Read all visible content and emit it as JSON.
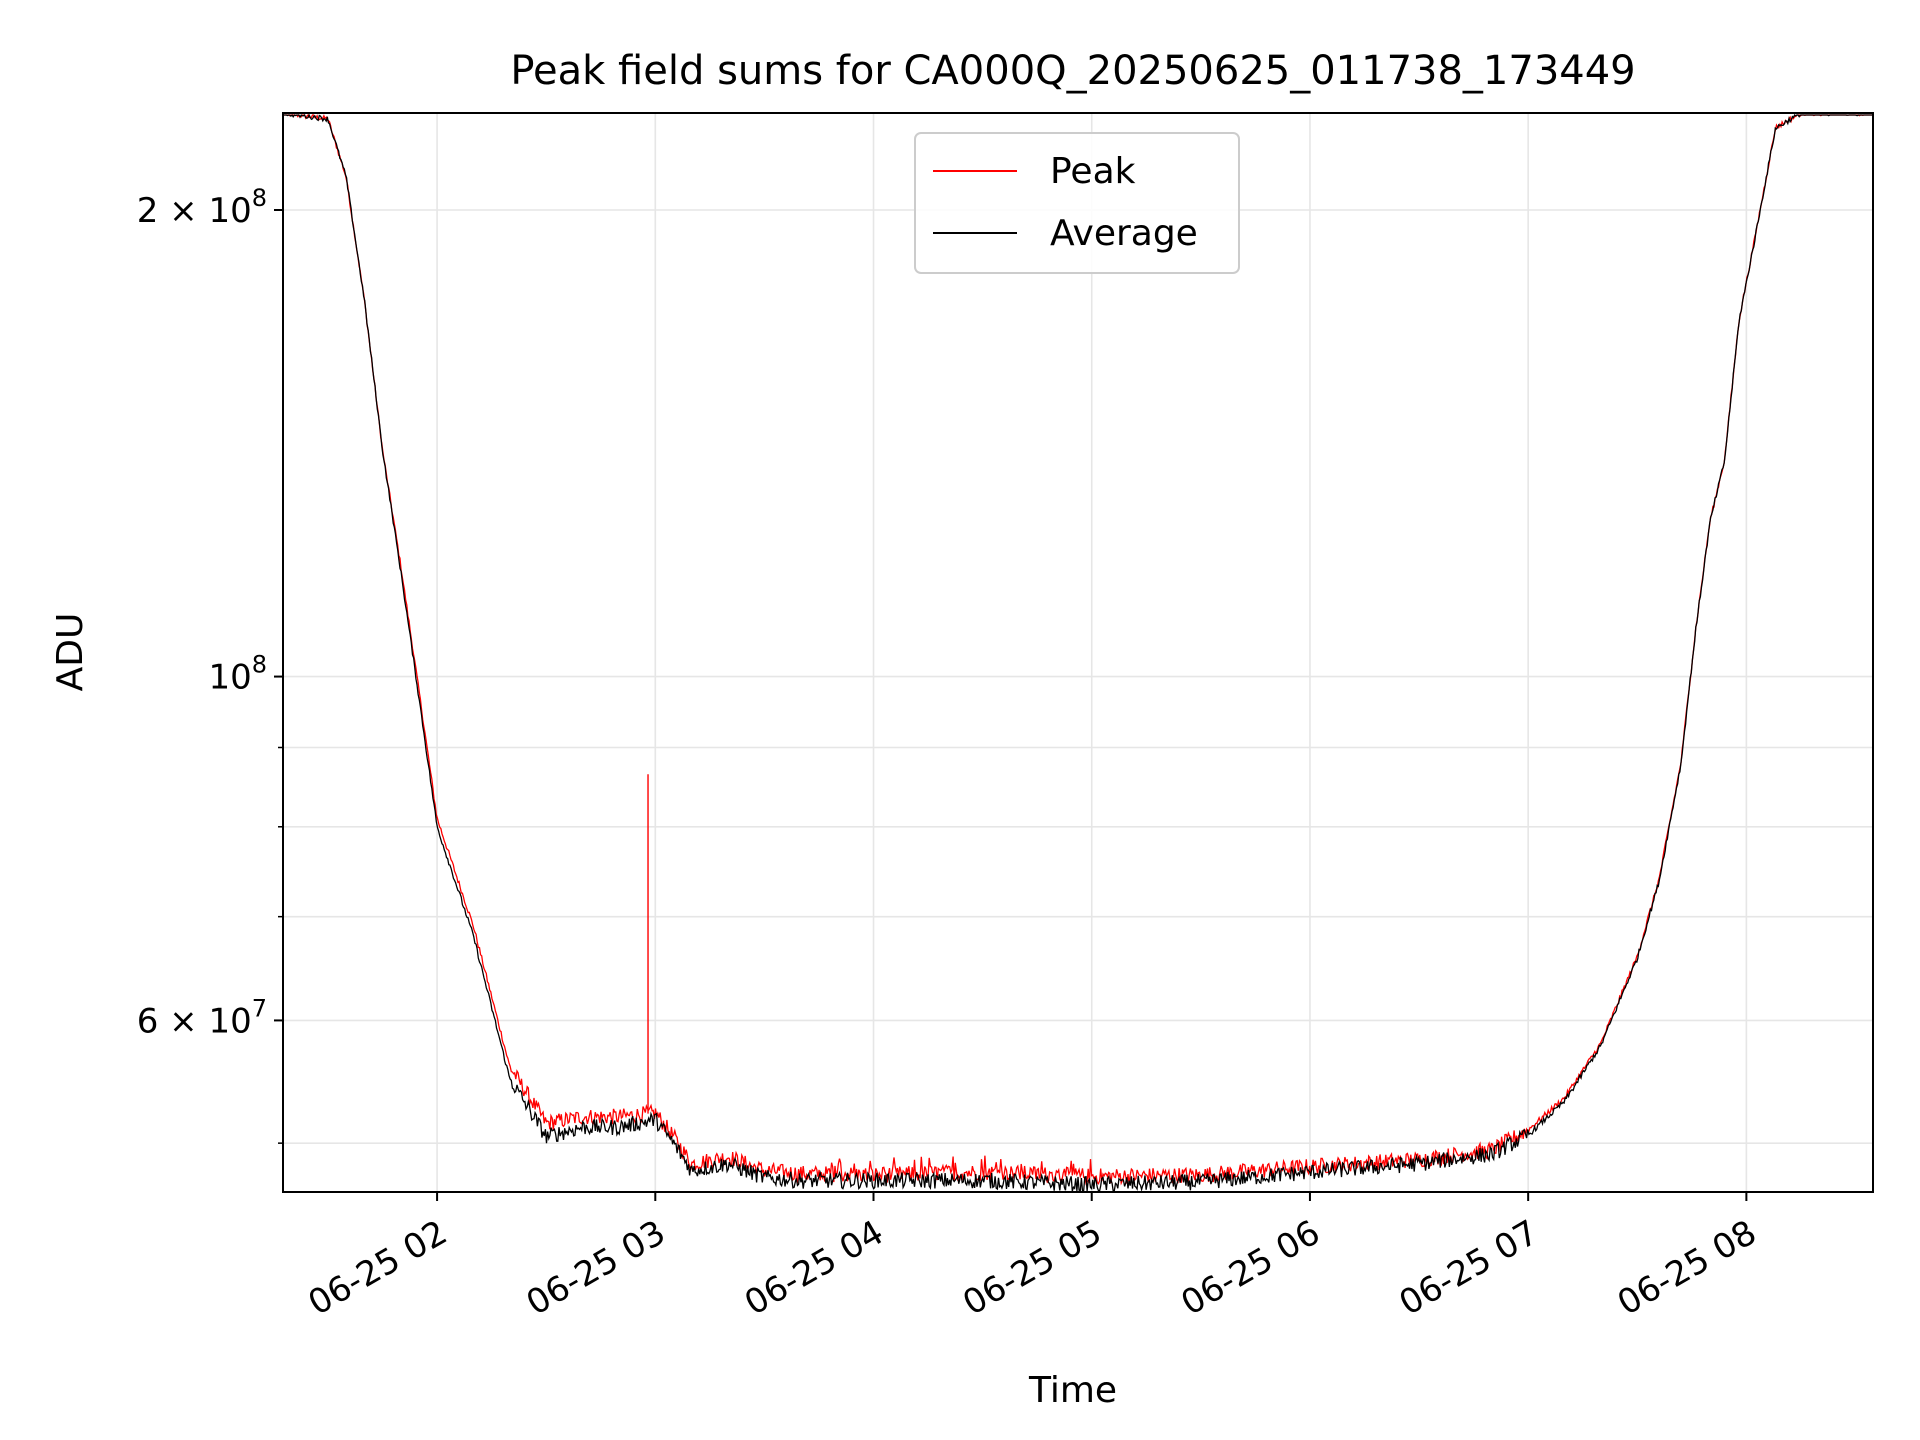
{
  "chart_data": {
    "type": "line",
    "title": "Peak field sums for CA000Q_20250625_011738_173449",
    "xlabel": "Time",
    "ylabel": "ADU",
    "yscale": "log",
    "grid": true,
    "legend_position": "top-center",
    "xlim": [
      "06-25 01:17:38",
      "06-25 08:34:49"
    ],
    "ylim": [
      46500000,
      231000000
    ],
    "x_ticks": [
      {
        "label": "06-25 02",
        "time": "06-25 02:00"
      },
      {
        "label": "06-25 03",
        "time": "06-25 03:00"
      },
      {
        "label": "06-25 04",
        "time": "06-25 04:00"
      },
      {
        "label": "06-25 05",
        "time": "06-25 05:00"
      },
      {
        "label": "06-25 06",
        "time": "06-25 06:00"
      },
      {
        "label": "06-25 07",
        "time": "06-25 07:00"
      },
      {
        "label": "06-25 08",
        "time": "06-25 08:00"
      }
    ],
    "y_major_ticks": [
      {
        "value": 60000000,
        "mantissa": "6",
        "exponent": "7"
      },
      {
        "value": 100000000,
        "mantissa": "",
        "exponent": "8"
      },
      {
        "value": 200000000,
        "mantissa": "2",
        "exponent": "8"
      }
    ],
    "y_minor_ticks": [
      50000000,
      70000000,
      80000000,
      90000000
    ],
    "x": [
      "06-25 01:17:38",
      "06-25 01:30",
      "06-25 01:35",
      "06-25 01:40",
      "06-25 01:45",
      "06-25 01:50",
      "06-25 01:55",
      "06-25 02:00",
      "06-25 02:10",
      "06-25 02:20",
      "06-25 02:30",
      "06-25 02:40",
      "06-25 02:50",
      "06-25 03:00",
      "06-25 03:05",
      "06-25 03:10",
      "06-25 03:20",
      "06-25 03:30",
      "06-25 03:40",
      "06-25 04:00",
      "06-25 04:30",
      "06-25 05:00",
      "06-25 05:30",
      "06-25 06:00",
      "06-25 06:30",
      "06-25 06:50",
      "06-25 07:00",
      "06-25 07:10",
      "06-25 07:20",
      "06-25 07:30",
      "06-25 07:36",
      "06-25 07:42",
      "06-25 07:46",
      "06-25 07:50",
      "06-25 07:54",
      "06-25 07:58",
      "06-25 08:02",
      "06-25 08:08",
      "06-25 08:15",
      "06-25 08:34:49"
    ],
    "series": [
      {
        "name": "Peak",
        "color": "#ff0000",
        "values": [
          231000000,
          229000000,
          210000000,
          175000000,
          140000000,
          118000000,
          98000000,
          81000000,
          69000000,
          56000000,
          51500000,
          52000000,
          52000000,
          52300000,
          50500000,
          48500000,
          49000000,
          48000000,
          47800000,
          47700000,
          47900000,
          47600000,
          47700000,
          48300000,
          48800000,
          49500000,
          51000000,
          53500000,
          58000000,
          66000000,
          74000000,
          88000000,
          107000000,
          126000000,
          138000000,
          170000000,
          190000000,
          226000000,
          231000000,
          231000000
        ],
        "spikes": [
          {
            "x": "06-25 02:58",
            "value": 86500000
          }
        ]
      },
      {
        "name": "Average",
        "color": "#000000",
        "values": [
          231000000,
          229000000,
          210000000,
          175000000,
          140000000,
          117000000,
          97000000,
          80000000,
          68000000,
          55000000,
          50500000,
          51200000,
          51200000,
          51800000,
          50000000,
          48000000,
          48500000,
          47500000,
          47300000,
          47300000,
          47300000,
          47000000,
          47200000,
          47900000,
          48500000,
          49200000,
          50600000,
          53200000,
          57800000,
          65800000,
          73800000,
          87800000,
          106800000,
          125800000,
          137800000,
          169800000,
          189800000,
          225800000,
          231000000,
          231000000
        ]
      }
    ]
  }
}
